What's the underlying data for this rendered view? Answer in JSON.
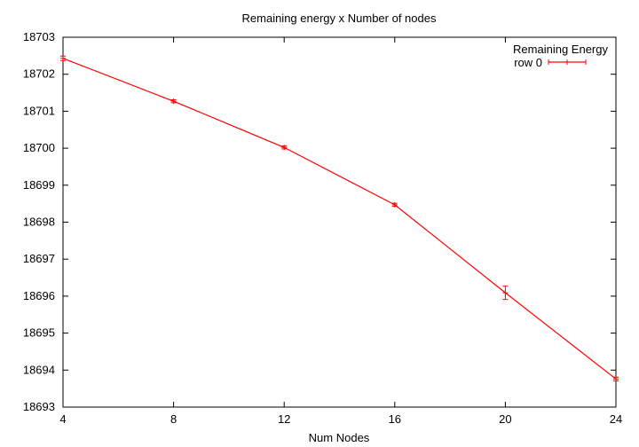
{
  "chart_data": {
    "type": "line",
    "title": "Remaining energy x Number of nodes",
    "xlabel": "Num Nodes",
    "ylabel": "",
    "x": [
      4,
      8,
      12,
      16,
      20,
      24
    ],
    "xticks": [
      "4",
      "8",
      "12",
      "16",
      "20",
      "24"
    ],
    "yticks": [
      "18693",
      "18694",
      "18695",
      "18696",
      "18697",
      "18698",
      "18699",
      "18700",
      "18701",
      "18702",
      "18703"
    ],
    "xlim": [
      4,
      24
    ],
    "ylim": [
      18693,
      18703
    ],
    "grid": false,
    "legend_position": "top-right",
    "legend_title": "Remaining Energy",
    "series": [
      {
        "name": "row 0",
        "color": "#ff0000",
        "values": [
          18702.43,
          18701.27,
          18700.02,
          18698.47,
          18696.09,
          18693.76
        ],
        "errors": [
          0.06,
          0.04,
          0.04,
          0.04,
          0.18,
          0.05
        ]
      }
    ]
  }
}
